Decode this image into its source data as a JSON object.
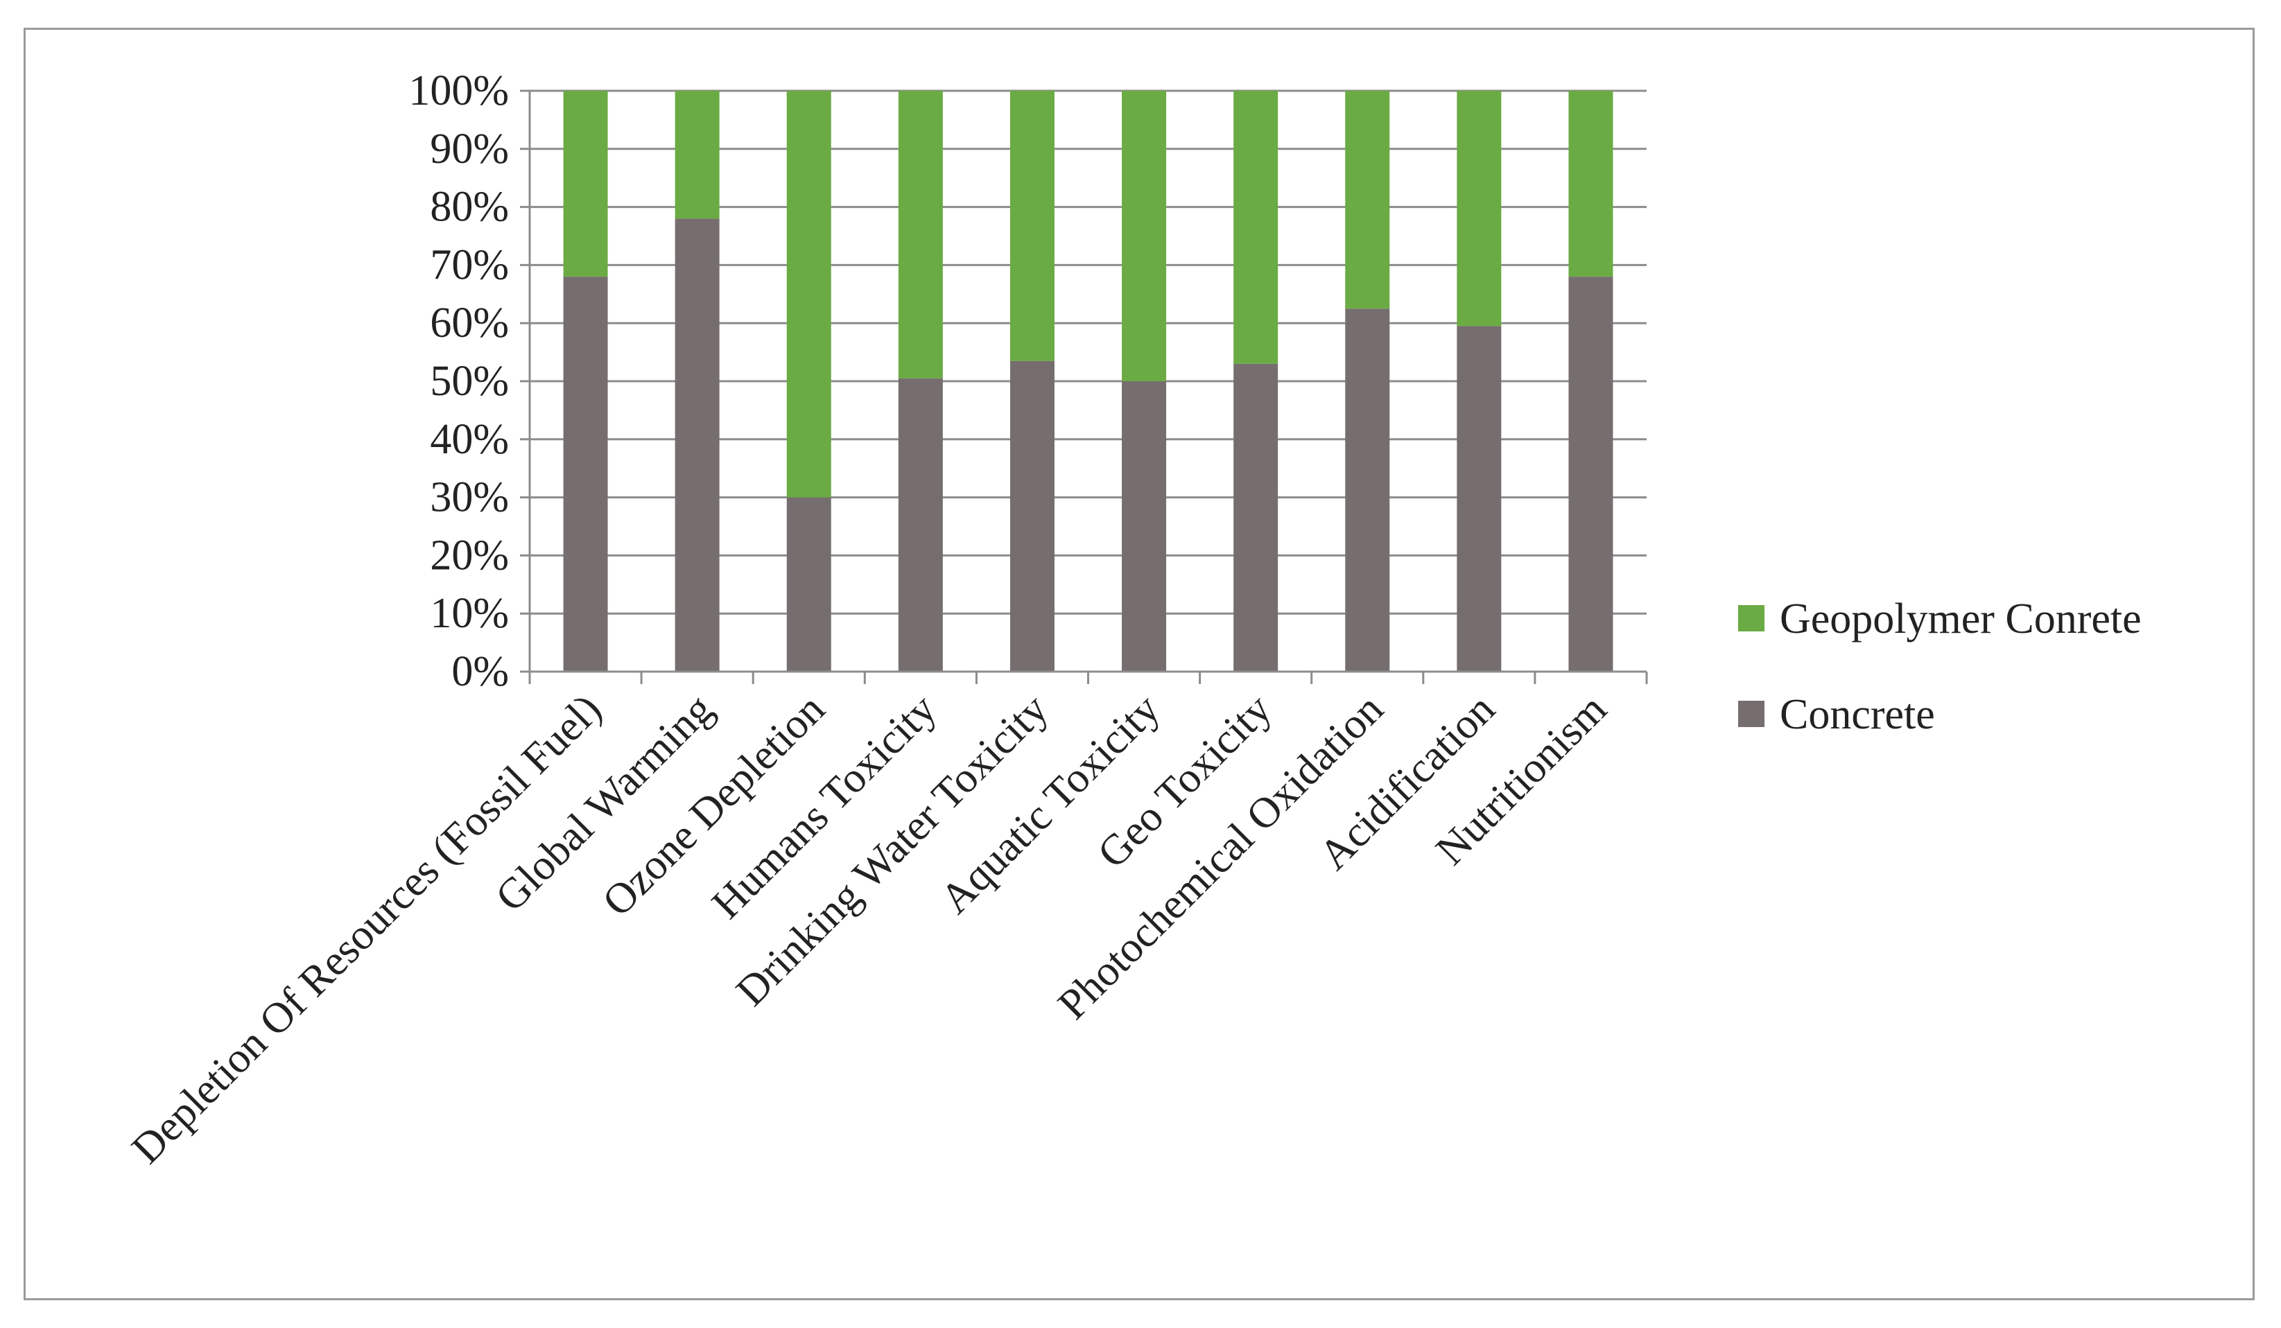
{
  "chart_data": {
    "type": "bar",
    "stacked": true,
    "categories": [
      "Depletion Of Resources (Fossil Fuel)",
      "Global Warming",
      "Ozone Depletion",
      "Humans Toxicity",
      "Drinking Water Toxicity",
      "Aquatic Toxicity",
      "Geo Toxicity",
      "Photochemical Oxidation",
      "Acidification",
      "Nutritionism"
    ],
    "series": [
      {
        "name": "Concrete",
        "color": "#766e6e",
        "values": [
          68,
          78,
          30,
          50.5,
          53.5,
          50,
          53,
          62.5,
          59.5,
          68
        ]
      },
      {
        "name": "Geopolymer Conrete",
        "color": "#6aab43",
        "values": [
          32,
          22,
          70,
          49.5,
          46.5,
          50,
          47,
          37.5,
          40.5,
          32
        ]
      }
    ],
    "y_ticks": [
      "0%",
      "10%",
      "20%",
      "30%",
      "40%",
      "50%",
      "60%",
      "70%",
      "80%",
      "90%",
      "100%"
    ],
    "ylim": [
      0,
      100
    ],
    "grid": true,
    "legend": {
      "position": "right",
      "entries": [
        "Geopolymer Conrete",
        "Concrete"
      ]
    },
    "colors": {
      "gridline": "#8c8c8c",
      "axis": "#8c8c8c",
      "frame": "#9a9a9a"
    }
  }
}
